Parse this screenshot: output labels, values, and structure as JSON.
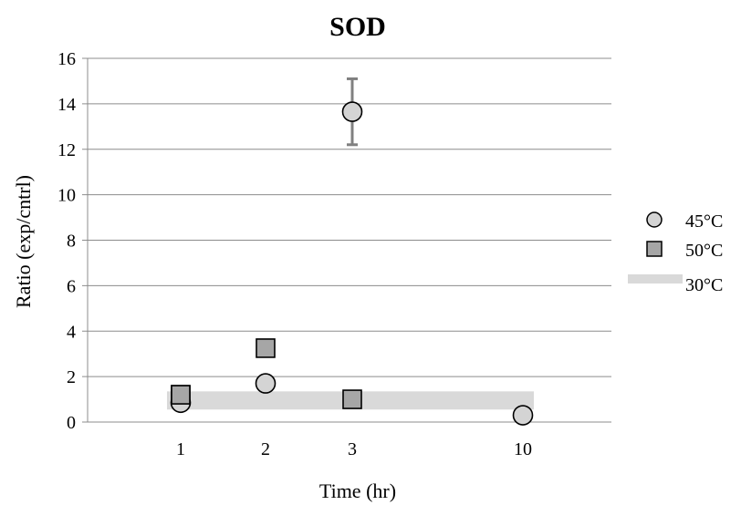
{
  "chart_data": {
    "type": "scatter",
    "title": "SOD",
    "xlabel": "Time (hr)",
    "ylabel": "Ratio (exp/cntrl)",
    "categories": [
      "1",
      "2",
      "3",
      "10"
    ],
    "ylim": [
      0,
      16
    ],
    "yticks": [
      0,
      2,
      4,
      6,
      8,
      10,
      12,
      14,
      16
    ],
    "grid": true,
    "legend_position": "right",
    "series": [
      {
        "name": "45°C",
        "marker": "circle",
        "color": "#d4d4d4",
        "points": [
          {
            "x": "1",
            "y": 0.85
          },
          {
            "x": "2",
            "y": 1.7
          },
          {
            "x": "3",
            "y": 13.65,
            "error": 1.45
          },
          {
            "x": "10",
            "y": 0.3
          }
        ]
      },
      {
        "name": "50°C",
        "marker": "square",
        "color": "#a6a6a6",
        "points": [
          {
            "x": "1",
            "y": 1.2
          },
          {
            "x": "2",
            "y": 3.25
          },
          {
            "x": "3",
            "y": 1.0
          }
        ]
      },
      {
        "name": "30°C",
        "marker": "band",
        "color": "#d9d9d9",
        "range": [
          0.55,
          1.35
        ]
      }
    ]
  }
}
